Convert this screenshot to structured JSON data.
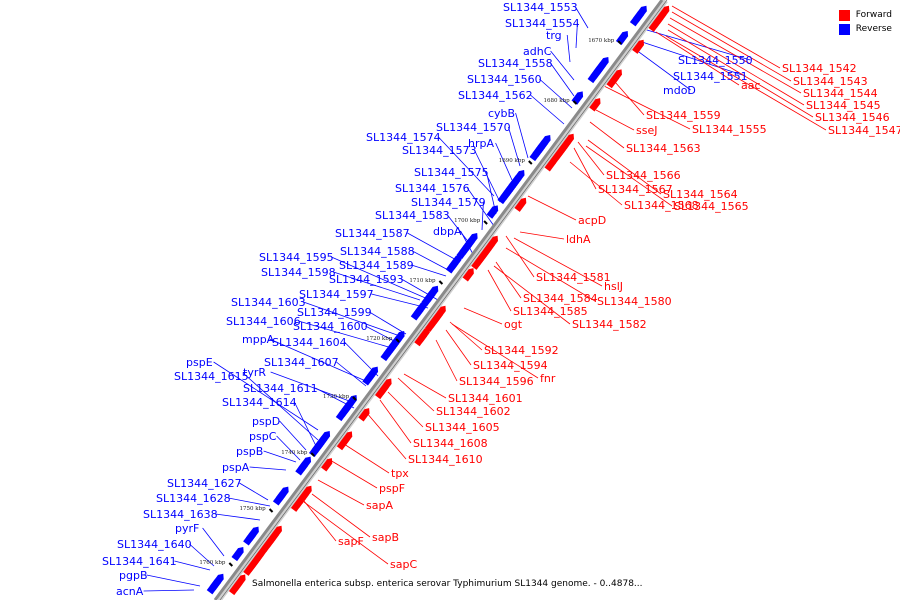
{
  "colors": {
    "forward": "#ff0000",
    "reverse": "#0000ff",
    "backbone": "#8a8a8a"
  },
  "legend": {
    "forward_label": "Forward",
    "reverse_label": "Reverse"
  },
  "caption": "Salmonella enterica subsp. enterica serovar Typhimurium SL1344 genome. - 0..4878...",
  "kbp_ticks": [
    "1670 kbp",
    "1680 kbp",
    "1690 kbp",
    "1700 kbp",
    "1710 kbp",
    "1720 kbp",
    "1730 kbp",
    "1740 kbp",
    "1750 kbp",
    "1760 kbp"
  ],
  "reverse_genes": [
    "SL1344_1553",
    "SL1344_1554",
    "trg",
    "adhC",
    "SL1344_1558",
    "SL1344_1560",
    "SL1344_1562",
    "cybB",
    "SL1344_1570",
    "hrpA",
    "SL1344_1574",
    "SL1344_1573",
    "SL1344_1575",
    "SL1344_1576",
    "SL1344_1579",
    "SL1344_1583",
    "dbpA",
    "SL1344_1587",
    "SL1344_1588",
    "SL1344_1595",
    "SL1344_1589",
    "SL1344_1598",
    "SL1344_1593",
    "SL1344_1597",
    "SL1344_1603",
    "SL1344_1599",
    "SL1344_1606",
    "SL1344_1600",
    "mppA",
    "SL1344_1604",
    "SL1344_1607",
    "pspE",
    "tyrR",
    "SL1344_1615",
    "SL1344_1611",
    "SL1344_1614",
    "pspD",
    "pspC",
    "pspB",
    "pspA",
    "SL1344_1627",
    "SL1344_1628",
    "SL1344_1638",
    "pyrF",
    "SL1344_1640",
    "SL1344_1641",
    "pgpB",
    "acnA",
    "SL1344_1550",
    "SL1344_1551",
    "mdoD"
  ],
  "forward_genes": [
    "SL1344_1542",
    "SL1344_1543",
    "SL1344_1544",
    "SL1344_1545",
    "SL1344_1546",
    "SL1344_1547",
    "aac",
    "SL1344_1559",
    "SL1344_1555",
    "sseJ",
    "SL1344_1563",
    "SL1344_1566",
    "SL1344_1567",
    "SL1344_1564",
    "SL1344_1568",
    "SL1344_1565",
    "acpD",
    "ldhA",
    "SL1344_1581",
    "hslJ",
    "SL1344_1584",
    "SL1344_1580",
    "SL1344_1585",
    "SL1344_1582",
    "ogt",
    "SL1344_1592",
    "SL1344_1594",
    "fnr",
    "SL1344_1596",
    "SL1344_1601",
    "SL1344_1602",
    "SL1344_1605",
    "SL1344_1608",
    "SL1344_1610",
    "tpx",
    "pspF",
    "sapA",
    "sapB",
    "sapF",
    "sapC"
  ]
}
